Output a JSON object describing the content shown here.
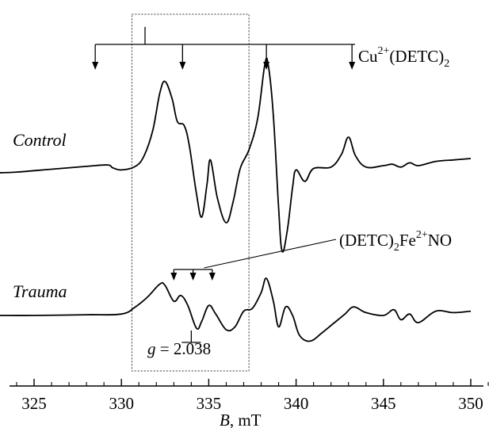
{
  "chart_data": {
    "type": "line",
    "title": "",
    "xlabel_var": "B",
    "xlabel_unit": ", mT",
    "ylabel": "",
    "xlim": [
      322.5,
      351
    ],
    "xticks": [
      325,
      330,
      335,
      340,
      345,
      350
    ],
    "xtick_labels": [
      "325",
      "330",
      "335",
      "340",
      "345",
      "350"
    ],
    "grid": false,
    "series": [
      {
        "name": "Control",
        "x": [
          323,
          324,
          326,
          328,
          329.2,
          329.5,
          330,
          330.8,
          331.3,
          331.8,
          332.2,
          332.5,
          332.9,
          333.2,
          333.6,
          333.9,
          334.3,
          334.6,
          334.9,
          335.1,
          335.5,
          336.0,
          336.4,
          336.8,
          337.3,
          337.8,
          338.2,
          338.4,
          338.7,
          339.0,
          339.2,
          339.5,
          339.8,
          340.0,
          340.5,
          341.0,
          342.0,
          342.6,
          343.0,
          343.4,
          344.0,
          345.0,
          345.5,
          346.0,
          346.5,
          347.0,
          348.0,
          349.0,
          350.0
        ],
        "y": [
          0.0,
          0.05,
          0.25,
          0.45,
          0.55,
          0.35,
          0.2,
          0.45,
          1.2,
          3.0,
          5.6,
          6.4,
          5.2,
          3.6,
          3.3,
          1.8,
          -1.5,
          -3.1,
          -0.8,
          0.9,
          -1.8,
          -3.5,
          -2.0,
          0.3,
          1.6,
          3.8,
          7.5,
          7.6,
          4.0,
          -2.5,
          -5.5,
          -4.0,
          -1.0,
          0.2,
          -0.6,
          0.3,
          0.4,
          1.3,
          2.5,
          1.2,
          0.4,
          0.5,
          0.6,
          0.4,
          0.7,
          0.5,
          0.8,
          0.9,
          1.0
        ]
      },
      {
        "name": "Trauma",
        "x": [
          323,
          325,
          328,
          330,
          330.8,
          331.5,
          332.2,
          332.5,
          333.0,
          333.4,
          333.8,
          334.3,
          334.6,
          335.0,
          335.4,
          336.0,
          336.5,
          337.0,
          337.5,
          338.0,
          338.3,
          338.7,
          339.0,
          339.4,
          339.8,
          340.2,
          340.8,
          341.5,
          342.2,
          342.8,
          343.3,
          344.0,
          345.0,
          345.6,
          346.0,
          346.5,
          347.0,
          348.0,
          349.0,
          350.0
        ],
        "y": [
          0.0,
          0.0,
          0.05,
          0.1,
          0.6,
          1.3,
          2.2,
          2.1,
          1.0,
          1.4,
          0.7,
          -0.9,
          -0.4,
          0.7,
          0.1,
          -1.0,
          -0.8,
          0.3,
          0.5,
          1.6,
          2.6,
          1.0,
          -0.8,
          0.6,
          0.0,
          -1.4,
          -1.8,
          -1.2,
          -0.5,
          0.1,
          0.6,
          0.2,
          0.0,
          0.4,
          -0.3,
          0.1,
          -0.5,
          0.3,
          0.2,
          0.3
        ]
      }
    ],
    "annotations": {
      "cu_label_base": "Cu",
      "cu_label_sup": "2+",
      "cu_label_mid": "(DETC)",
      "cu_label_sub": "2",
      "cu_arrows_x": [
        328.5,
        333.5,
        338.3,
        343.2
      ],
      "fe_label_pre": "(DETC)",
      "fe_label_sub": "2",
      "fe_label_mid": "Fe",
      "fe_label_sup": "2+",
      "fe_label_post": "NO",
      "fe_arrows_x": [
        333.0,
        334.1,
        335.2
      ],
      "g_label_italic": "g",
      "g_label_value": " = 2.038",
      "g_marker_x": 334.0,
      "dotted_box_x": [
        330.6,
        337.3
      ]
    }
  }
}
